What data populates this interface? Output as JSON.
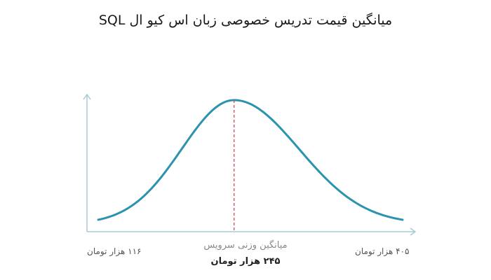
{
  "title": "میانگین قیمت تدریس خصوصی زبان اس کیو ال SQL",
  "colors": {
    "curve": "#2b93ad",
    "axis": "#a8cbd6",
    "mean_line": "#d9455f"
  },
  "chart_data": {
    "type": "line",
    "title": "میانگین قیمت تدریس خصوصی زبان اس کیو ال SQL",
    "x_unit": "هزار تومان",
    "x_min": 116,
    "x_max": 405,
    "mean": 245,
    "grid": false,
    "min_label": "۱۱۶ هزار تومان",
    "max_label": "۴۰۵ هزار تومان",
    "mean_title": "میانگین وزنی سرویس",
    "mean_label": "۲۴۵ هزار تومان"
  }
}
